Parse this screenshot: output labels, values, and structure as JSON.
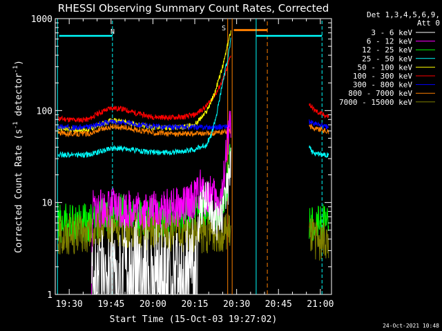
{
  "chart_data": {
    "type": "line",
    "title": "RHESSI Observing Summary Count Rates, Corrected",
    "xlabel": "Start Time (15-Oct-03 19:27:02)",
    "ylabel_main": "Corrected Count Rate (s",
    "ylabel_sup1": "-1",
    "ylabel_mid": " detector",
    "ylabel_sup2": "-1",
    "ylabel_end": ")",
    "y_scale": "log",
    "ylim": [
      1,
      1000
    ],
    "xlim_minutes": [
      -2,
      97
    ],
    "xticks": [
      {
        "t": 3,
        "label": "19:30"
      },
      {
        "t": 18,
        "label": "19:45"
      },
      {
        "t": 33,
        "label": "20:00"
      },
      {
        "t": 48,
        "label": "20:15"
      },
      {
        "t": 63,
        "label": "20:30"
      },
      {
        "t": 78,
        "label": "20:45"
      },
      {
        "t": 93,
        "label": "21:00"
      }
    ],
    "yticks": [
      {
        "v": 1,
        "label": "1"
      },
      {
        "v": 10,
        "label": "10"
      },
      {
        "v": 100,
        "label": "100"
      },
      {
        "v": 1000,
        "label": "1000"
      }
    ],
    "legend": {
      "header1": "Det 1,3,4,5,6,9,",
      "header2": "Att 0",
      "placement": "right",
      "entries": [
        {
          "label": "3 - 6 keV",
          "color": "#ffffff"
        },
        {
          "label": "6 - 12 keV",
          "color": "#ff00ff"
        },
        {
          "label": "12 - 25 keV",
          "color": "#00ff00"
        },
        {
          "label": "25 - 50 keV",
          "color": "#00ffff"
        },
        {
          "label": "50 - 100 keV",
          "color": "#ffff00"
        },
        {
          "label": "100 - 300 keV",
          "color": "#ff0000"
        },
        {
          "label": "300 - 800 keV",
          "color": "#0000ff"
        },
        {
          "label": "800 - 7000 keV",
          "color": "#ff8000"
        },
        {
          "label": "7000 - 15000 keV",
          "color": "#808000"
        }
      ]
    },
    "annotations": {
      "night_label": "N",
      "saa_label": "S",
      "timestamp": "24-Oct-2021 10:48"
    },
    "gaps_minutes": [
      [
        -2,
        13
      ],
      [
        61,
        88
      ],
      [
        96,
        97
      ]
    ],
    "series": [
      {
        "name": "100 - 300 keV",
        "color": "#ff0000",
        "points": [
          [
            -1,
            82
          ],
          [
            5,
            79
          ],
          [
            10,
            80
          ],
          [
            13,
            92
          ],
          [
            18,
            107
          ],
          [
            22,
            104
          ],
          [
            27,
            94
          ],
          [
            32,
            86
          ],
          [
            38,
            84
          ],
          [
            44,
            85
          ],
          [
            48,
            90
          ],
          [
            52,
            110
          ],
          [
            56,
            160
          ],
          [
            59,
            250
          ],
          [
            61,
            420
          ],
          [
            89,
            118
          ],
          [
            91,
            100
          ],
          [
            94,
            90
          ],
          [
            96,
            86
          ]
        ]
      },
      {
        "name": "50 - 100 keV",
        "color": "#ffff00",
        "points": [
          [
            -1,
            64
          ],
          [
            5,
            62
          ],
          [
            10,
            62
          ],
          [
            13,
            68
          ],
          [
            18,
            78
          ],
          [
            22,
            76
          ],
          [
            27,
            71
          ],
          [
            32,
            66
          ],
          [
            38,
            65
          ],
          [
            44,
            66
          ],
          [
            48,
            70
          ],
          [
            52,
            95
          ],
          [
            55,
            150
          ],
          [
            58,
            300
          ],
          [
            60,
            550
          ],
          [
            61,
            760
          ]
        ]
      },
      {
        "name": "300 - 800 keV",
        "color": "#0000ff",
        "points": [
          [
            -1,
            67
          ],
          [
            5,
            65
          ],
          [
            10,
            66
          ],
          [
            13,
            70
          ],
          [
            18,
            76
          ],
          [
            22,
            75
          ],
          [
            27,
            71
          ],
          [
            32,
            68
          ],
          [
            38,
            66
          ],
          [
            44,
            66
          ],
          [
            48,
            66
          ],
          [
            52,
            66
          ],
          [
            56,
            66
          ],
          [
            61,
            68
          ],
          [
            89,
            75
          ],
          [
            91,
            72
          ],
          [
            94,
            68
          ],
          [
            96,
            65
          ]
        ]
      },
      {
        "name": "800 - 7000 keV",
        "color": "#ff8000",
        "points": [
          [
            -1,
            57
          ],
          [
            5,
            56
          ],
          [
            10,
            56
          ],
          [
            13,
            60
          ],
          [
            18,
            67
          ],
          [
            22,
            66
          ],
          [
            27,
            62
          ],
          [
            32,
            58
          ],
          [
            38,
            56
          ],
          [
            44,
            56
          ],
          [
            48,
            56
          ],
          [
            52,
            56
          ],
          [
            56,
            57
          ],
          [
            61,
            60
          ],
          [
            89,
            68
          ],
          [
            91,
            64
          ],
          [
            94,
            61
          ],
          [
            96,
            58
          ]
        ]
      },
      {
        "name": "25 - 50 keV",
        "color": "#00ffff",
        "points": [
          [
            -1,
            33
          ],
          [
            5,
            33
          ],
          [
            10,
            33
          ],
          [
            13,
            35
          ],
          [
            18,
            39
          ],
          [
            22,
            39
          ],
          [
            27,
            37
          ],
          [
            32,
            35
          ],
          [
            38,
            35
          ],
          [
            44,
            36
          ],
          [
            48,
            38
          ],
          [
            52,
            42
          ],
          [
            54,
            55
          ],
          [
            56,
            95
          ],
          [
            58,
            200
          ],
          [
            60,
            400
          ],
          [
            61,
            600
          ],
          [
            89,
            42
          ],
          [
            90,
            35
          ],
          [
            92,
            34
          ],
          [
            96,
            33
          ]
        ]
      },
      {
        "name": "12 - 25 keV",
        "color": "#00ff00",
        "points": [
          [
            -1,
            6
          ],
          [
            5,
            6
          ],
          [
            10,
            6
          ],
          [
            13,
            6.5
          ],
          [
            18,
            7.5
          ],
          [
            22,
            7.5
          ],
          [
            27,
            7
          ],
          [
            32,
            6.8
          ],
          [
            38,
            6.8
          ],
          [
            44,
            7
          ],
          [
            48,
            8
          ],
          [
            52,
            9
          ],
          [
            55,
            7
          ],
          [
            58,
            10
          ],
          [
            60,
            20
          ],
          [
            61,
            40
          ],
          [
            89,
            6.5
          ],
          [
            91,
            6
          ],
          [
            94,
            5.8
          ],
          [
            96,
            5.8
          ]
        ]
      },
      {
        "name": "7000 - 15000 keV",
        "color": "#808000",
        "points": [
          [
            -1,
            4.5
          ],
          [
            5,
            4.5
          ],
          [
            10,
            4.5
          ],
          [
            13,
            5.5
          ],
          [
            18,
            5.5
          ],
          [
            22,
            5.2
          ],
          [
            27,
            5
          ],
          [
            32,
            4.8
          ],
          [
            38,
            4.7
          ],
          [
            44,
            4.6
          ],
          [
            48,
            4.6
          ],
          [
            52,
            4.6
          ],
          [
            56,
            4.7
          ],
          [
            61,
            4.8
          ],
          [
            89,
            4.3
          ],
          [
            91,
            4
          ],
          [
            94,
            3.8
          ],
          [
            96,
            3.7
          ]
        ]
      },
      {
        "name": "6 - 12 keV",
        "color": "#ff00ff",
        "points": [
          [
            11,
            1
          ],
          [
            11.5,
            8.5
          ],
          [
            13,
            8.5
          ],
          [
            18,
            8.8
          ],
          [
            22,
            8.6
          ],
          [
            27,
            8.4
          ],
          [
            32,
            8.3
          ],
          [
            38,
            8.5
          ],
          [
            44,
            9
          ],
          [
            48,
            11
          ],
          [
            50,
            14
          ],
          [
            52,
            11
          ],
          [
            54,
            13
          ],
          [
            56,
            10
          ],
          [
            58,
            12
          ],
          [
            59,
            30
          ],
          [
            60,
            50
          ],
          [
            61,
            80
          ]
        ]
      },
      {
        "name": "3 - 6 keV",
        "color": "#ffffff",
        "points": [
          [
            11,
            1
          ],
          [
            13,
            1.5
          ],
          [
            18,
            2
          ],
          [
            22,
            1.8
          ],
          [
            27,
            2.2
          ],
          [
            32,
            1.7
          ],
          [
            38,
            1.7
          ],
          [
            44,
            1.8
          ],
          [
            48,
            2
          ],
          [
            50,
            8
          ],
          [
            52,
            12
          ],
          [
            54,
            8
          ],
          [
            56,
            6
          ],
          [
            58,
            8
          ],
          [
            60,
            15
          ],
          [
            61,
            28
          ]
        ]
      }
    ]
  }
}
